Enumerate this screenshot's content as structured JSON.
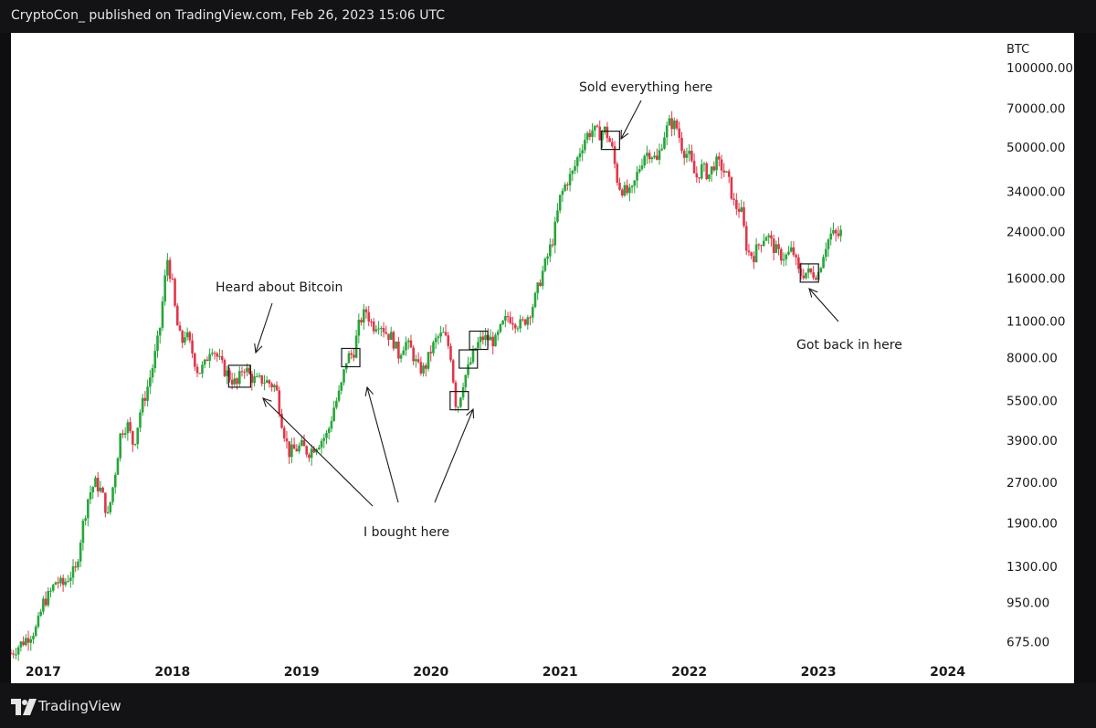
{
  "header": {
    "caption": "CryptoCon_ published on TradingView.com, Feb 26, 2023 15:06 UTC"
  },
  "footer": {
    "brand": "TradingView",
    "logo_icon": "tradingview-logo-icon"
  },
  "colors": {
    "up": "#26a63a",
    "down": "#e0364a",
    "bg": "#ffffff",
    "frame": "#131315",
    "text": "#1a1a1a"
  },
  "chart_data": {
    "type": "candlestick",
    "symbol": "BTC",
    "scale": "log",
    "ylim": [
      560,
      135000
    ],
    "y_ticks": [
      "100000.00",
      "70000.00",
      "50000.00",
      "34000.00",
      "24000.00",
      "16000.00",
      "11000.00",
      "8000.00",
      "5500.00",
      "3900.00",
      "2700.00",
      "1900.00",
      "1300.00",
      "950.00",
      "675.00"
    ],
    "xlim": [
      2016.75,
      2024.3
    ],
    "x_ticks": [
      "2017",
      "2018",
      "2019",
      "2020",
      "2021",
      "2022",
      "2023",
      "2024"
    ],
    "weekly_close_path": [
      [
        2016.75,
        610
      ],
      [
        2016.85,
        680
      ],
      [
        2016.95,
        760
      ],
      [
        2017.0,
        950
      ],
      [
        2017.05,
        1020
      ],
      [
        2017.1,
        1150
      ],
      [
        2017.15,
        1100
      ],
      [
        2017.2,
        1200
      ],
      [
        2017.25,
        1250
      ],
      [
        2017.3,
        1800
      ],
      [
        2017.35,
        2400
      ],
      [
        2017.4,
        2700
      ],
      [
        2017.45,
        2500
      ],
      [
        2017.5,
        2000
      ],
      [
        2017.55,
        2800
      ],
      [
        2017.6,
        4200
      ],
      [
        2017.65,
        4500
      ],
      [
        2017.7,
        3700
      ],
      [
        2017.75,
        5000
      ],
      [
        2017.8,
        6000
      ],
      [
        2017.85,
        7500
      ],
      [
        2017.9,
        10000
      ],
      [
        2017.93,
        14000
      ],
      [
        2017.96,
        19000
      ],
      [
        2018.0,
        15000
      ],
      [
        2018.03,
        11000
      ],
      [
        2018.07,
        9000
      ],
      [
        2018.1,
        10000
      ],
      [
        2018.15,
        8500
      ],
      [
        2018.2,
        7000
      ],
      [
        2018.25,
        7500
      ],
      [
        2018.3,
        9000
      ],
      [
        2018.35,
        8000
      ],
      [
        2018.4,
        7200
      ],
      [
        2018.45,
        6700
      ],
      [
        2018.5,
        6300
      ],
      [
        2018.55,
        7500
      ],
      [
        2018.6,
        6800
      ],
      [
        2018.65,
        6500
      ],
      [
        2018.7,
        6600
      ],
      [
        2018.75,
        6400
      ],
      [
        2018.8,
        6200
      ],
      [
        2018.85,
        4500
      ],
      [
        2018.9,
        3500
      ],
      [
        2018.95,
        3600
      ],
      [
        2019.0,
        3700
      ],
      [
        2019.05,
        3500
      ],
      [
        2019.1,
        3700
      ],
      [
        2019.15,
        3900
      ],
      [
        2019.2,
        4100
      ],
      [
        2019.25,
        5200
      ],
      [
        2019.3,
        6000
      ],
      [
        2019.35,
        8000
      ],
      [
        2019.4,
        8300
      ],
      [
        2019.45,
        11000
      ],
      [
        2019.5,
        12000
      ],
      [
        2019.55,
        10500
      ],
      [
        2019.6,
        11000
      ],
      [
        2019.65,
        10000
      ],
      [
        2019.7,
        9500
      ],
      [
        2019.75,
        8200
      ],
      [
        2019.8,
        9200
      ],
      [
        2019.85,
        8500
      ],
      [
        2019.9,
        7300
      ],
      [
        2019.95,
        7200
      ],
      [
        2020.0,
        8500
      ],
      [
        2020.05,
        9500
      ],
      [
        2020.1,
        9800
      ],
      [
        2020.15,
        8500
      ],
      [
        2020.2,
        5000
      ],
      [
        2020.25,
        6500
      ],
      [
        2020.3,
        7500
      ],
      [
        2020.35,
        8800
      ],
      [
        2020.4,
        9500
      ],
      [
        2020.45,
        9400
      ],
      [
        2020.5,
        9200
      ],
      [
        2020.55,
        10500
      ],
      [
        2020.6,
        11500
      ],
      [
        2020.65,
        11000
      ],
      [
        2020.7,
        10600
      ],
      [
        2020.75,
        11500
      ],
      [
        2020.8,
        13000
      ],
      [
        2020.85,
        16000
      ],
      [
        2020.9,
        19000
      ],
      [
        2020.95,
        23000
      ],
      [
        2021.0,
        32000
      ],
      [
        2021.05,
        37000
      ],
      [
        2021.1,
        40000
      ],
      [
        2021.15,
        48000
      ],
      [
        2021.2,
        55000
      ],
      [
        2021.25,
        58000
      ],
      [
        2021.3,
        56000
      ],
      [
        2021.35,
        58000
      ],
      [
        2021.4,
        50000
      ],
      [
        2021.45,
        36000
      ],
      [
        2021.5,
        34000
      ],
      [
        2021.55,
        33000
      ],
      [
        2021.6,
        40000
      ],
      [
        2021.65,
        47000
      ],
      [
        2021.7,
        48000
      ],
      [
        2021.75,
        44000
      ],
      [
        2021.8,
        55000
      ],
      [
        2021.85,
        62000
      ],
      [
        2021.9,
        60000
      ],
      [
        2021.95,
        49000
      ],
      [
        2022.0,
        46000
      ],
      [
        2022.05,
        38000
      ],
      [
        2022.1,
        42000
      ],
      [
        2022.15,
        39000
      ],
      [
        2022.2,
        44000
      ],
      [
        2022.25,
        42000
      ],
      [
        2022.3,
        38000
      ],
      [
        2022.35,
        30000
      ],
      [
        2022.4,
        29000
      ],
      [
        2022.45,
        20000
      ],
      [
        2022.5,
        19500
      ],
      [
        2022.55,
        22000
      ],
      [
        2022.6,
        23500
      ],
      [
        2022.65,
        21000
      ],
      [
        2022.7,
        19500
      ],
      [
        2022.75,
        19300
      ],
      [
        2022.8,
        20500
      ],
      [
        2022.85,
        16500
      ],
      [
        2022.9,
        16800
      ],
      [
        2022.95,
        16600
      ],
      [
        2023.0,
        16800
      ],
      [
        2023.05,
        21000
      ],
      [
        2023.1,
        23500
      ],
      [
        2023.15,
        23000
      ],
      [
        2023.18,
        24000
      ]
    ],
    "annotations": [
      {
        "id": "heard",
        "text": "Heard about Bitcoin"
      },
      {
        "id": "bought",
        "text": "I bought here"
      },
      {
        "id": "sold",
        "text": "Sold everything here"
      },
      {
        "id": "back",
        "text": "Got back in here"
      }
    ],
    "marker_boxes": [
      {
        "id": "box-heard",
        "t": 2018.52,
        "price": 6800
      },
      {
        "id": "box-buy-1",
        "t": 2019.38,
        "price": 8000
      },
      {
        "id": "box-buy-2",
        "t": 2020.22,
        "price": 5500
      },
      {
        "id": "box-buy-3",
        "t": 2020.29,
        "price": 7900
      },
      {
        "id": "box-buy-4",
        "t": 2020.37,
        "price": 9300
      },
      {
        "id": "box-sold",
        "t": 2021.39,
        "price": 53000
      },
      {
        "id": "box-back",
        "t": 2022.93,
        "price": 16700
      }
    ]
  }
}
